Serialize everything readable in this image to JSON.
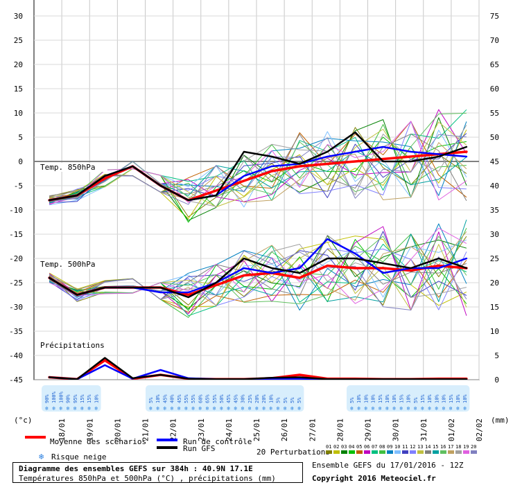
{
  "units": {
    "left": "(°c)",
    "right": "(mm)"
  },
  "dates": [
    "18/01",
    "19/01",
    "20/01",
    "21/01",
    "22/01",
    "23/01",
    "24/01",
    "25/01",
    "26/01",
    "27/01",
    "28/01",
    "29/01",
    "30/01",
    "31/01",
    "01/02",
    "02/02"
  ],
  "panel_labels": {
    "t850": "Temp. 850hPa",
    "t500": "Temp. 500hPa",
    "precip": "Précipitations"
  },
  "legend": {
    "mean": "Moyenne des scénarios",
    "control": "Run de contrôle",
    "gfs": "Run GFS",
    "snow": "Risque neige",
    "perturbations": "20 Perturbations",
    "pert_numbers": [
      "01",
      "02",
      "03",
      "04",
      "05",
      "06",
      "07",
      "08",
      "09",
      "10",
      "11",
      "12",
      "13",
      "14",
      "15",
      "16",
      "17",
      "18",
      "19",
      "20"
    ]
  },
  "colors": {
    "mean": "#ff0000",
    "control": "#0000ff",
    "gfs": "#000000",
    "perturbations": [
      "#808000",
      "#c0c000",
      "#008000",
      "#00c000",
      "#c06000",
      "#c000c0",
      "#00c080",
      "#40c040",
      "#0080c0",
      "#80c0ff",
      "#4040c0",
      "#8080ff",
      "#c0c040",
      "#808080",
      "#00a0a0",
      "#60c060",
      "#c0a060",
      "#a0a0a0",
      "#e060e0",
      "#8080c0"
    ]
  },
  "snow": {
    "group1": [
      "90%",
      "100%",
      "100%",
      "90%",
      "95%",
      "15%",
      "15%",
      "10%"
    ],
    "group2": [
      "5%",
      "10%",
      "45%",
      "40%",
      "45%",
      "55%",
      "55%",
      "60%",
      "65%",
      "55%",
      "50%",
      "45%",
      "45%",
      "30%",
      "25%",
      "20%",
      "20%",
      "10%",
      "5%",
      "5%",
      "5%",
      "5%"
    ],
    "group3": [
      "5%",
      "10%",
      "10%",
      "10%",
      "15%",
      "10%",
      "10%",
      "15%",
      "10%",
      "5%",
      "15%",
      "10%",
      "10%",
      "10%",
      "15%",
      "10%",
      "10%"
    ]
  },
  "footer": {
    "title": "Diagramme des ensembles GEFS sur 384h : 40.9N 17.1E",
    "subtitle": "Températures 850hPa et 500hPa (°C) , précipitations (mm)",
    "ensemble": "Ensemble GEFS du 17/01/2016 - 12Z",
    "copyright": "Copyright 2016 Meteociel.fr"
  },
  "chart_data": [
    {
      "type": "line",
      "title": "Temp. 850hPa",
      "units": "°C",
      "x": [
        "18/01",
        "19/01",
        "20/01",
        "21/01",
        "22/01",
        "23/01",
        "24/01",
        "25/01",
        "26/01",
        "27/01",
        "28/01",
        "29/01",
        "30/01",
        "31/01",
        "01/02",
        "02/02"
      ],
      "series": [
        {
          "name": "Moyenne des scénarios",
          "values": [
            -8,
            -7,
            -3.5,
            -1,
            -5,
            -8,
            -6,
            -4,
            -2,
            -1,
            -0.5,
            0,
            0.5,
            1,
            1.5,
            2
          ]
        },
        {
          "name": "Run de contrôle",
          "values": [
            -8,
            -7,
            -3,
            -1,
            -5,
            -8,
            -7,
            -3,
            -1,
            -0.5,
            1,
            2,
            3,
            2,
            1.5,
            1
          ]
        },
        {
          "name": "Run GFS",
          "values": [
            -8,
            -7,
            -3,
            -1,
            -5,
            -8,
            -7,
            2,
            1,
            -0.5,
            2,
            6,
            0,
            0,
            1,
            3
          ]
        }
      ]
    },
    {
      "type": "line",
      "title": "Temp. 500hPa",
      "units": "°C",
      "x": [
        "18/01",
        "19/01",
        "20/01",
        "21/01",
        "22/01",
        "23/01",
        "24/01",
        "25/01",
        "26/01",
        "27/01",
        "28/01",
        "29/01",
        "30/01",
        "31/01",
        "01/02",
        "02/02"
      ],
      "series": [
        {
          "name": "Moyenne des scénarios",
          "values": [
            -24,
            -27.5,
            -26,
            -26,
            -26,
            -27.5,
            -25.5,
            -23.5,
            -23,
            -24,
            -21.5,
            -22,
            -22,
            -22.5,
            -21.5,
            -22
          ]
        },
        {
          "name": "Run de contrôle",
          "values": [
            -24,
            -27.5,
            -26,
            -26,
            -27,
            -27,
            -25,
            -22,
            -23,
            -22,
            -16,
            -19,
            -23,
            -22,
            -22,
            -20
          ]
        },
        {
          "name": "Run GFS",
          "values": [
            -24,
            -27.5,
            -26,
            -26,
            -26,
            -28,
            -25,
            -20,
            -22,
            -23,
            -20,
            -20,
            -21,
            -22,
            -20,
            -22
          ]
        }
      ]
    },
    {
      "type": "line",
      "title": "Précipitations",
      "units": "mm",
      "x": [
        "18/01",
        "19/01",
        "20/01",
        "21/01",
        "22/01",
        "23/01",
        "24/01",
        "25/01",
        "26/01",
        "27/01",
        "28/01",
        "29/01",
        "30/01",
        "31/01",
        "01/02",
        "02/02"
      ],
      "series": [
        {
          "name": "Moyenne des scénarios",
          "values": [
            0.5,
            0.1,
            4,
            0.2,
            1,
            0.2,
            0.1,
            0.1,
            0.3,
            1,
            0.2,
            0.2,
            0.1,
            0.1,
            0.2,
            0.2
          ]
        },
        {
          "name": "Run de contrôle",
          "values": [
            0.5,
            0.1,
            3,
            0.2,
            2,
            0.3,
            0.1,
            0.1,
            0.2,
            0.2,
            0.1,
            0.1,
            0.1,
            0.1,
            0.1,
            0.1
          ]
        },
        {
          "name": "Run GFS",
          "values": [
            0.5,
            0.1,
            4.5,
            0.3,
            1,
            0.2,
            0.1,
            0.1,
            0.4,
            0.5,
            0.1,
            0.1,
            0.1,
            0.1,
            0.1,
            0.1
          ]
        }
      ]
    }
  ],
  "axes": {
    "left_ticks": [
      30,
      25,
      20,
      15,
      10,
      5,
      0,
      -5,
      -10,
      -15,
      -20,
      -25,
      -30,
      -35,
      -40,
      -45
    ],
    "right_ticks": [
      75,
      70,
      65,
      60,
      55,
      50,
      45,
      40,
      35,
      30,
      25,
      20,
      15,
      10,
      5,
      0
    ],
    "ylim_left": [
      -45,
      30
    ],
    "ylim_right": [
      0,
      75
    ]
  }
}
